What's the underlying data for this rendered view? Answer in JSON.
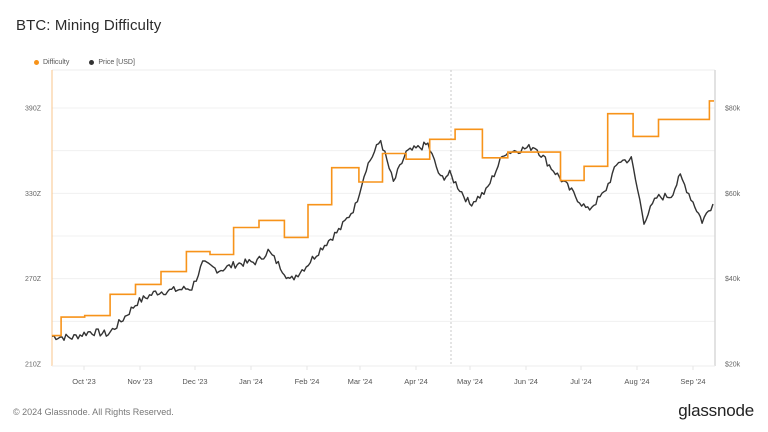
{
  "header": {
    "title": "BTC: Mining Difficulty"
  },
  "legend": [
    {
      "label": "Difficulty",
      "color": "#f7931a"
    },
    {
      "label": "Price [USD]",
      "color": "#333333"
    }
  ],
  "footer": {
    "copyright": "© 2024 Glassnode. All Rights Reserved.",
    "logo": "glassnode"
  },
  "chart_data": {
    "type": "line",
    "title": "BTC: Mining Difficulty",
    "xlabel": "",
    "ylabel_left": "Difficulty",
    "ylabel_right": "Price [USD]",
    "x_ticks": [
      "Oct '23",
      "Nov '23",
      "Dec '23",
      "Jan '24",
      "Feb '24",
      "Mar '24",
      "Apr '24",
      "May '24",
      "Jun '24",
      "Jul '24",
      "Aug '24",
      "Sep '24"
    ],
    "y_left_ticks": [
      "390Z",
      "330Z",
      "270Z",
      "210Z"
    ],
    "y_left_range": [
      210,
      390
    ],
    "y_right_ticks": [
      "$80k",
      "$60k",
      "$40k",
      "$20k"
    ],
    "y_right_range": [
      20000,
      80000
    ],
    "grid": true,
    "legend_position": "top-left",
    "annotation": "dashed vertical line near late April 2024 (halving)",
    "series": [
      {
        "name": "Difficulty",
        "axis": "left",
        "color": "#f7931a",
        "step": true,
        "points": [
          [
            "2023-09-14",
            230
          ],
          [
            "2023-09-19",
            243
          ],
          [
            "2023-10-02",
            244
          ],
          [
            "2023-10-16",
            259
          ],
          [
            "2023-10-30",
            266
          ],
          [
            "2023-11-13",
            275
          ],
          [
            "2023-11-27",
            289
          ],
          [
            "2023-12-10",
            287
          ],
          [
            "2023-12-23",
            306
          ],
          [
            "2024-01-06",
            311
          ],
          [
            "2024-01-20",
            299
          ],
          [
            "2024-02-02",
            322
          ],
          [
            "2024-02-15",
            348
          ],
          [
            "2024-03-01",
            338
          ],
          [
            "2024-03-14",
            358
          ],
          [
            "2024-03-27",
            354
          ],
          [
            "2024-04-09",
            368
          ],
          [
            "2024-04-23",
            375
          ],
          [
            "2024-05-08",
            355
          ],
          [
            "2024-05-22",
            359
          ],
          [
            "2024-06-05",
            359
          ],
          [
            "2024-06-20",
            339
          ],
          [
            "2024-07-03",
            349
          ],
          [
            "2024-07-16",
            386
          ],
          [
            "2024-07-30",
            370
          ],
          [
            "2024-08-13",
            382
          ],
          [
            "2024-08-26",
            382
          ],
          [
            "2024-09-10",
            395
          ]
        ]
      },
      {
        "name": "Price [USD]",
        "axis": "right",
        "color": "#333333",
        "points": [
          [
            "2023-09-14",
            26500
          ],
          [
            "2023-09-25",
            26200
          ],
          [
            "2023-10-05",
            27600
          ],
          [
            "2023-10-15",
            27000
          ],
          [
            "2023-10-22",
            30000
          ],
          [
            "2023-10-31",
            34500
          ],
          [
            "2023-11-10",
            36800
          ],
          [
            "2023-11-20",
            37300
          ],
          [
            "2023-11-30",
            37800
          ],
          [
            "2023-12-06",
            43500
          ],
          [
            "2023-12-15",
            42000
          ],
          [
            "2023-12-25",
            43500
          ],
          [
            "2024-01-05",
            44000
          ],
          [
            "2024-01-11",
            46500
          ],
          [
            "2024-01-20",
            41600
          ],
          [
            "2024-01-23",
            39500
          ],
          [
            "2024-02-01",
            43000
          ],
          [
            "2024-02-10",
            47500
          ],
          [
            "2024-02-20",
            51800
          ],
          [
            "2024-02-28",
            57000
          ],
          [
            "2024-03-05",
            66000
          ],
          [
            "2024-03-13",
            72500
          ],
          [
            "2024-03-20",
            62500
          ],
          [
            "2024-03-27",
            69500
          ],
          [
            "2024-04-08",
            71500
          ],
          [
            "2024-04-15",
            63500
          ],
          [
            "2024-04-20",
            64500
          ],
          [
            "2024-05-01",
            57500
          ],
          [
            "2024-05-10",
            60500
          ],
          [
            "2024-05-20",
            69500
          ],
          [
            "2024-06-06",
            71000
          ],
          [
            "2024-06-15",
            66000
          ],
          [
            "2024-06-25",
            61000
          ],
          [
            "2024-07-05",
            56000
          ],
          [
            "2024-07-14",
            60000
          ],
          [
            "2024-07-22",
            67500
          ],
          [
            "2024-07-29",
            68000
          ],
          [
            "2024-08-05",
            53500
          ],
          [
            "2024-08-12",
            59000
          ],
          [
            "2024-08-20",
            59500
          ],
          [
            "2024-08-25",
            64000
          ],
          [
            "2024-09-01",
            58000
          ],
          [
            "2024-09-06",
            53500
          ],
          [
            "2024-09-12",
            57500
          ]
        ]
      }
    ]
  }
}
